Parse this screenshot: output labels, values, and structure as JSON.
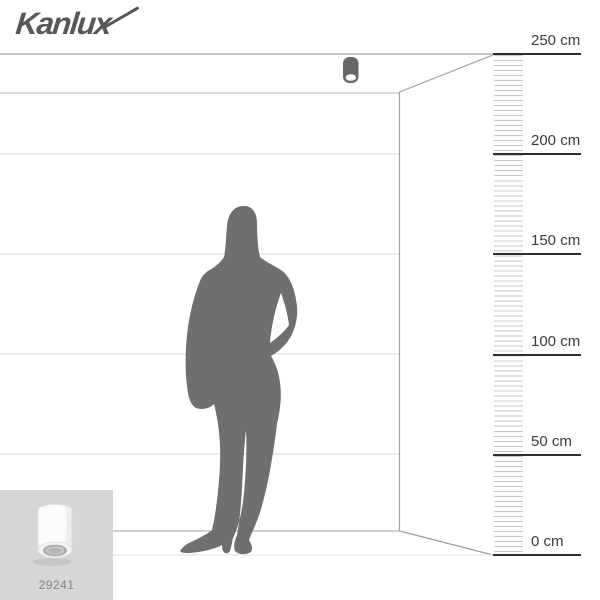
{
  "logo": {
    "text": "Kanlux"
  },
  "ruler": {
    "unit": "cm",
    "max_cm": 250,
    "min_cm": 0,
    "label_step_cm": 50,
    "labels": [
      {
        "cm": 250,
        "text": "250 cm"
      },
      {
        "cm": 200,
        "text": "200 cm"
      },
      {
        "cm": 150,
        "text": "150 cm"
      },
      {
        "cm": 100,
        "text": "100 cm"
      },
      {
        "cm": 50,
        "text": "50 cm"
      },
      {
        "cm": 0,
        "text": "0 cm"
      }
    ]
  },
  "thumbnail": {
    "product_code": "29241"
  },
  "colors": {
    "logo": "#57575a",
    "silhouette": "#6f6f6f",
    "fixture": "#686868",
    "ruler-major-line": "#2e2e2e",
    "ruler-tick": "#c8c8c8",
    "ruler-label": "#3a3a3a",
    "thumbnail-bg": "#d6d6d6"
  }
}
